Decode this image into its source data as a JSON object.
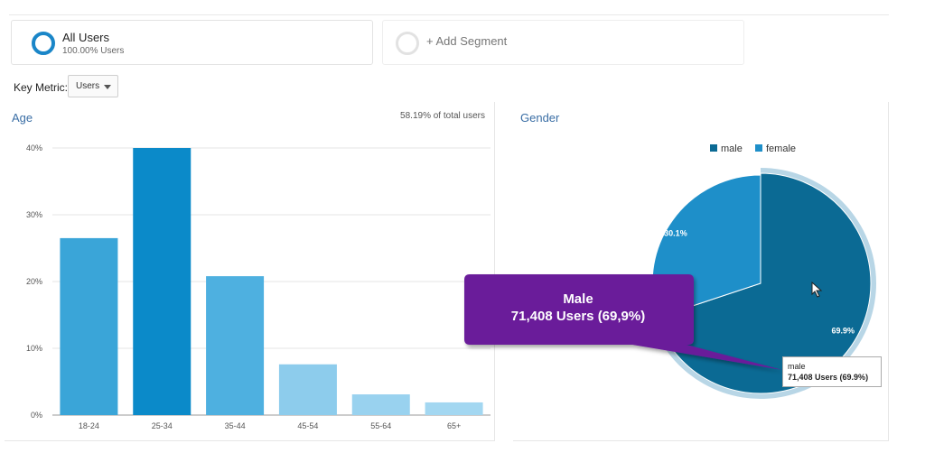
{
  "segments": {
    "all_users": {
      "title": "All Users",
      "subtitle": "100.00% Users"
    },
    "add_segment": {
      "label": "+ Add Segment"
    }
  },
  "key_metric": {
    "label": "Key Metric:",
    "value": "Users"
  },
  "age_panel": {
    "title": "Age",
    "total_label": "58.19% of total users"
  },
  "gender_panel": {
    "title": "Gender"
  },
  "callout": {
    "line1": "Male",
    "line2": "71,408 Users (69,9%)"
  },
  "tooltip": {
    "label": "male",
    "value": "71,408 Users (69.9%)"
  },
  "colors": {
    "accent": "#1a86c8",
    "callout": "#6a1b9a",
    "male": "#0b6a94",
    "female": "#1e8fc9"
  },
  "chart_data": [
    {
      "type": "bar",
      "title": "Age",
      "categories": [
        "18-24",
        "25-34",
        "35-44",
        "45-54",
        "55-64",
        "65+"
      ],
      "values": [
        26.5,
        40.0,
        20.8,
        7.6,
        3.1,
        1.9
      ],
      "bar_colors": [
        "#3aa5d8",
        "#0b8ac9",
        "#4eb0e0",
        "#8dccec",
        "#99d2ef",
        "#a3d7f1"
      ],
      "y_ticks": [
        "0%",
        "10%",
        "20%",
        "30%",
        "40%"
      ],
      "ylim": [
        0,
        40
      ],
      "grid": true
    },
    {
      "type": "pie",
      "title": "Gender",
      "slices": [
        {
          "name": "male",
          "value": 69.9,
          "label": "69.9%",
          "color": "#0b6a94"
        },
        {
          "name": "female",
          "value": 30.1,
          "label": "30.1%",
          "color": "#1e8fc9"
        }
      ],
      "legend": [
        "male",
        "female"
      ],
      "legend_position": "top"
    }
  ]
}
